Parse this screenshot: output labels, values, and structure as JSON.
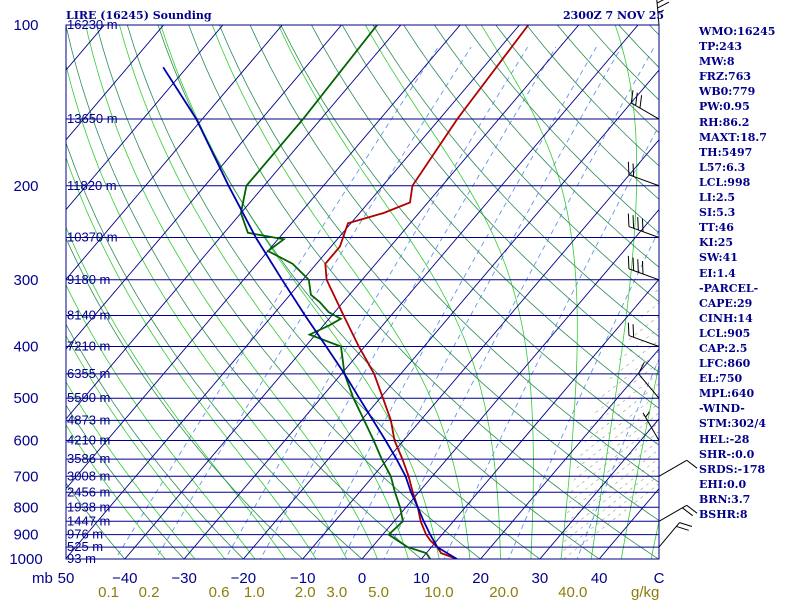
{
  "header": {
    "station": "LIRE (16245) Sounding",
    "time": "2300Z  7 NOV 25"
  },
  "indices": [
    "WMO:16245",
    "TP:243",
    "MW:8",
    "FRZ:763",
    "WB0:779",
    "PW:0.95",
    "RH:86.2",
    "MAXT:18.7",
    "TH:5497",
    "L57:6.3",
    "LCL:998",
    "LI:2.5",
    "SI:5.3",
    "TT:46",
    "KI:25",
    "SW:41",
    "EI:1.4",
    "-PARCEL-",
    "CAPE:29",
    "CINH:14",
    "LCL:905",
    "CAP:2.5",
    "LFC:860",
    "EL:750",
    "MPL:640",
    "-WIND-",
    "STM:302/4",
    "HEL:-28",
    "SHR-:0.0",
    "SRDS:-178",
    "EHI:0.0",
    "BRN:3.7",
    "BSHR:8"
  ],
  "colors": {
    "isobar": "#00008b",
    "isotherm": "#00008b",
    "dry_adiabat": "#2e8b57",
    "moist_adiabat": "#32cd32",
    "mixing_ratio": "#6495ed",
    "temperature": "#b00000",
    "dewpoint": "#006400",
    "parcel": "#0000b0",
    "hatch": "#999999",
    "text": "#00008b",
    "mixing_label": "#8b7d0b"
  },
  "chart_data": {
    "type": "skew-t",
    "title": "LIRE (16245) Sounding",
    "xlabel": "C",
    "ylabel": "mb",
    "ylim": [
      1000,
      100
    ],
    "xlim": [
      -50,
      50
    ],
    "pressure_ticks": [
      {
        "p": 100,
        "label": "100",
        "height": "16230 m"
      },
      {
        "p": 150,
        "label": "",
        "height": "13650 m"
      },
      {
        "p": 200,
        "label": "200",
        "height": "11820 m"
      },
      {
        "p": 250,
        "label": "",
        "height": "10370 m"
      },
      {
        "p": 300,
        "label": "300",
        "height": "9180 m"
      },
      {
        "p": 350,
        "label": "",
        "height": "8140 m"
      },
      {
        "p": 400,
        "label": "400",
        "height": "7210 m"
      },
      {
        "p": 450,
        "label": "",
        "height": "6355 m"
      },
      {
        "p": 500,
        "label": "500",
        "height": "5590 m"
      },
      {
        "p": 550,
        "label": "",
        "height": "4873 m"
      },
      {
        "p": 600,
        "label": "600",
        "height": "4210 m"
      },
      {
        "p": 650,
        "label": "",
        "height": "3586 m"
      },
      {
        "p": 700,
        "label": "700",
        "height": "3008 m"
      },
      {
        "p": 750,
        "label": "",
        "height": "2456 m"
      },
      {
        "p": 800,
        "label": "800",
        "height": "1938 m"
      },
      {
        "p": 850,
        "label": "",
        "height": "1447 m"
      },
      {
        "p": 900,
        "label": "900",
        "height": "976 m"
      },
      {
        "p": 950,
        "label": "",
        "height": "525 m"
      },
      {
        "p": 1000,
        "label": "1000",
        "height": "93 m"
      }
    ],
    "temp_ticks": [
      {
        "t": -40,
        "label": "−40"
      },
      {
        "t": -30,
        "label": "−30"
      },
      {
        "t": -20,
        "label": "−20"
      },
      {
        "t": -10,
        "label": "−10"
      },
      {
        "t": 0,
        "label": "0"
      },
      {
        "t": 10,
        "label": "10"
      },
      {
        "t": 20,
        "label": "20"
      },
      {
        "t": 30,
        "label": "30"
      },
      {
        "t": 40,
        "label": "40"
      }
    ],
    "axis_labels": {
      "mb": "mb",
      "left_temp": "50",
      "right_temp": "C",
      "mixing_unit": "g/kg"
    },
    "mixing_ratio_labels": [
      "0.1",
      "0.2",
      "0.6",
      "1.0",
      "2.0",
      "3.0",
      "5.0",
      "10.0",
      "20.0",
      "40.0"
    ],
    "mixing_ratio_values": [
      0.1,
      0.2,
      0.6,
      1.0,
      2.0,
      3.0,
      5.0,
      10.0,
      20.0,
      40.0
    ],
    "series": [
      {
        "name": "temperature",
        "points": [
          {
            "p": 1000,
            "t": 16.0
          },
          {
            "p": 975,
            "t": 12.5
          },
          {
            "p": 950,
            "t": 11.0
          },
          {
            "p": 925,
            "t": 9.0
          },
          {
            "p": 900,
            "t": 7.3
          },
          {
            "p": 850,
            "t": 4.5
          },
          {
            "p": 800,
            "t": 2.0
          },
          {
            "p": 750,
            "t": -1.0
          },
          {
            "p": 700,
            "t": -4.0
          },
          {
            "p": 650,
            "t": -7.5
          },
          {
            "p": 600,
            "t": -11.5
          },
          {
            "p": 550,
            "t": -15.0
          },
          {
            "p": 500,
            "t": -19.5
          },
          {
            "p": 450,
            "t": -24.5
          },
          {
            "p": 400,
            "t": -31.0
          },
          {
            "p": 350,
            "t": -38.0
          },
          {
            "p": 300,
            "t": -46.0
          },
          {
            "p": 280,
            "t": -48.5
          },
          {
            "p": 260,
            "t": -48.5
          },
          {
            "p": 235,
            "t": -50.5
          },
          {
            "p": 225,
            "t": -46.0
          },
          {
            "p": 215,
            "t": -43.0
          },
          {
            "p": 200,
            "t": -45.0
          },
          {
            "p": 150,
            "t": -47.0
          },
          {
            "p": 100,
            "t": -48.5
          }
        ]
      },
      {
        "name": "dewpoint",
        "points": [
          {
            "p": 1000,
            "t": 11.5
          },
          {
            "p": 975,
            "t": 10.0
          },
          {
            "p": 950,
            "t": 6.0
          },
          {
            "p": 925,
            "t": 3.5
          },
          {
            "p": 900,
            "t": 1.0
          },
          {
            "p": 850,
            "t": 1.5
          },
          {
            "p": 800,
            "t": -1.0
          },
          {
            "p": 750,
            "t": -4.0
          },
          {
            "p": 700,
            "t": -7.0
          },
          {
            "p": 650,
            "t": -11.0
          },
          {
            "p": 600,
            "t": -15.0
          },
          {
            "p": 550,
            "t": -19.5
          },
          {
            "p": 500,
            "t": -24.5
          },
          {
            "p": 450,
            "t": -29.5
          },
          {
            "p": 400,
            "t": -34.0
          },
          {
            "p": 380,
            "t": -41.0
          },
          {
            "p": 365,
            "t": -39.0
          },
          {
            "p": 355,
            "t": -38.0
          },
          {
            "p": 345,
            "t": -41.0
          },
          {
            "p": 330,
            "t": -44.0
          },
          {
            "p": 320,
            "t": -46.5
          },
          {
            "p": 300,
            "t": -49.0
          },
          {
            "p": 280,
            "t": -54.0
          },
          {
            "p": 265,
            "t": -60.0
          },
          {
            "p": 252,
            "t": -59.0
          },
          {
            "p": 245,
            "t": -66.0
          },
          {
            "p": 225,
            "t": -70.0
          },
          {
            "p": 200,
            "t": -73.0
          },
          {
            "p": 150,
            "t": -73.0
          },
          {
            "p": 100,
            "t": -74.0
          }
        ]
      },
      {
        "name": "parcel",
        "points": [
          {
            "p": 1000,
            "t": 16.0
          },
          {
            "p": 950,
            "t": 11.0
          },
          {
            "p": 900,
            "t": 8.0
          },
          {
            "p": 850,
            "t": 5.0
          },
          {
            "p": 800,
            "t": 2.0
          },
          {
            "p": 750,
            "t": -1.3
          },
          {
            "p": 700,
            "t": -4.5
          },
          {
            "p": 650,
            "t": -8.5
          },
          {
            "p": 600,
            "t": -13.0
          },
          {
            "p": 550,
            "t": -18.0
          },
          {
            "p": 500,
            "t": -23.5
          },
          {
            "p": 450,
            "t": -29.5
          },
          {
            "p": 400,
            "t": -36.5
          },
          {
            "p": 350,
            "t": -44.5
          },
          {
            "p": 300,
            "t": -53.5
          },
          {
            "p": 250,
            "t": -64.0
          },
          {
            "p": 200,
            "t": -76.0
          },
          {
            "p": 150,
            "t": -91.0
          },
          {
            "p": 120,
            "t": -104.0
          }
        ]
      }
    ],
    "wind_barbs": [
      {
        "p": 100,
        "dir": 355,
        "kt": 45
      },
      {
        "p": 150,
        "dir": 300,
        "kt": 30
      },
      {
        "p": 200,
        "dir": 290,
        "kt": 20
      },
      {
        "p": 250,
        "dir": 290,
        "kt": 40
      },
      {
        "p": 300,
        "dir": 290,
        "kt": 40
      },
      {
        "p": 400,
        "dir": 290,
        "kt": 20
      },
      {
        "p": 500,
        "dir": 320,
        "kt": 10
      },
      {
        "p": 600,
        "dir": 330,
        "kt": 5
      },
      {
        "p": 700,
        "dir": 60,
        "kt": 10
      },
      {
        "p": 850,
        "dir": 60,
        "kt": 20
      },
      {
        "p": 950,
        "dir": 40,
        "kt": 20
      }
    ]
  }
}
